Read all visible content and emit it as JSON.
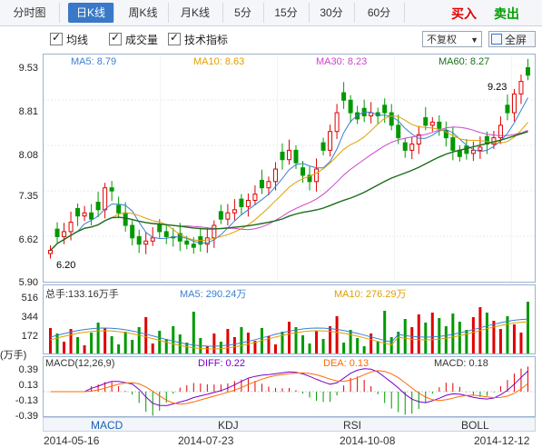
{
  "tabs": [
    {
      "label": "分时图",
      "active": false
    },
    {
      "label": "日K线",
      "active": true
    },
    {
      "label": "周K线",
      "active": false
    },
    {
      "label": "月K线",
      "active": false
    },
    {
      "label": "5分",
      "active": false
    },
    {
      "label": "15分",
      "active": false
    },
    {
      "label": "30分",
      "active": false
    },
    {
      "label": "60分",
      "active": false
    }
  ],
  "actions": {
    "buy": "买入",
    "sell": "卖出"
  },
  "options": {
    "ma": "均线",
    "volume": "成交量",
    "indicators": "技术指标",
    "adjust": "不复权",
    "fullscreen": "全屏"
  },
  "price_axis": {
    "ticks": [
      "9.53",
      "8.81",
      "8.08",
      "7.35",
      "6.62",
      "5.90"
    ],
    "high_label": "9.23",
    "low_label": "6.20"
  },
  "ma_legend": {
    "ma5": "MA5: 8.79",
    "ma10": "MA10: 8.63",
    "ma30": "MA30: 8.23",
    "ma60": "MA60: 8.27"
  },
  "volume": {
    "total": "总手:133.16万手",
    "ma5": "MA5: 290.24万",
    "ma10": "MA10: 276.29万",
    "ticks": [
      "516",
      "344",
      "172"
    ],
    "unit": "(万手)"
  },
  "macd": {
    "title": "MACD(12,26,9)",
    "diff": "DIFF: 0.22",
    "dea": "DEA: 0.13",
    "macd": "MACD: 0.18",
    "ticks": [
      "0.39",
      "0.13",
      "-0.13",
      "-0.39"
    ]
  },
  "indicator_tabs": [
    "MACD",
    "KDJ",
    "RSI",
    "BOLL"
  ],
  "dates": [
    "2014-05-16",
    "2014-07-23",
    "2014-10-08",
    "2014-12-12"
  ],
  "colors": {
    "up": "#e00000",
    "down": "#009900",
    "ma5": "#3b7fd0",
    "ma10": "#e0a000",
    "ma30": "#cc44cc",
    "ma60": "#1a6e1a",
    "diff": "#7a00cc",
    "dea": "#ff6a00",
    "active_tab": "#3a78c8"
  },
  "chart_data": {
    "type": "candlestick",
    "price_range": [
      5.9,
      9.53
    ],
    "close_series": [
      6.4,
      6.62,
      6.7,
      6.85,
      6.95,
      7.0,
      6.9,
      7.05,
      7.4,
      7.35,
      7.0,
      6.8,
      6.6,
      6.5,
      6.55,
      6.6,
      6.7,
      6.62,
      6.6,
      6.55,
      6.5,
      6.45,
      6.5,
      6.6,
      6.8,
      6.9,
      7.0,
      7.05,
      7.1,
      7.2,
      7.3,
      7.4,
      7.5,
      7.7,
      7.85,
      8.0,
      7.8,
      7.6,
      7.5,
      7.7,
      8.0,
      8.3,
      8.6,
      8.8,
      8.6,
      8.5,
      8.55,
      8.6,
      8.55,
      8.6,
      8.4,
      8.2,
      8.0,
      8.1,
      8.25,
      8.4,
      8.45,
      8.35,
      8.2,
      8.0,
      7.9,
      7.95,
      8.0,
      8.05,
      8.1,
      8.2,
      8.4,
      8.6,
      8.9,
      9.1,
      9.2
    ]
  }
}
